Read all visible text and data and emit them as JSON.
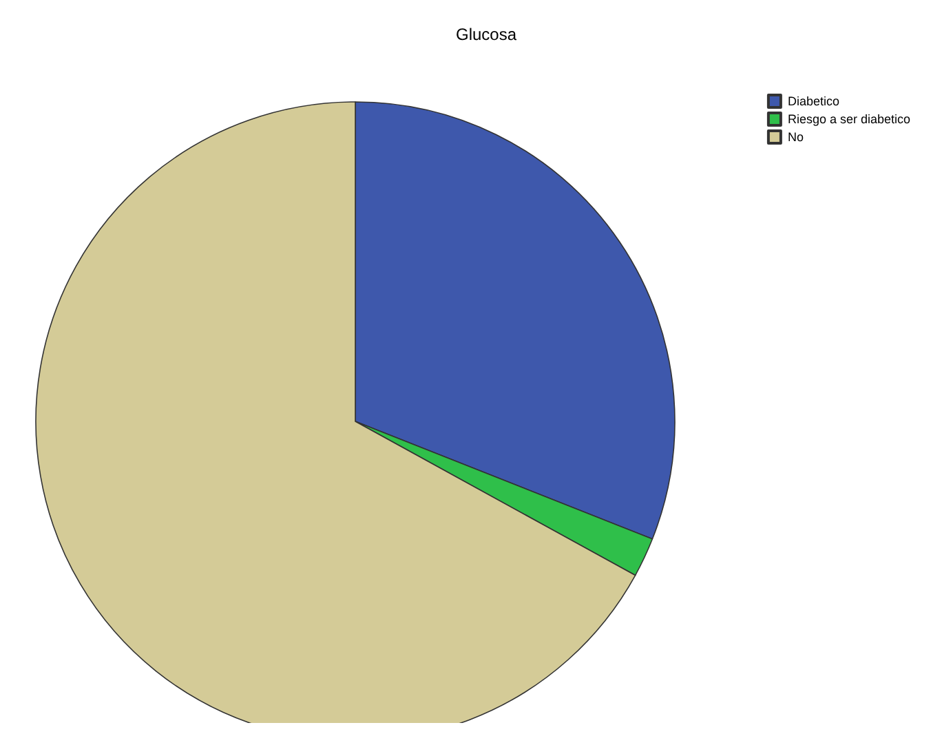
{
  "chart_data": {
    "type": "pie",
    "title": "Glucosa",
    "categories": [
      "Diabetico",
      "Riesgo a ser diabetico",
      "No"
    ],
    "values": [
      31,
      2,
      67
    ],
    "colors": [
      "#3e58ac",
      "#2fbf4a",
      "#d4cb97"
    ],
    "legend": "top right"
  }
}
